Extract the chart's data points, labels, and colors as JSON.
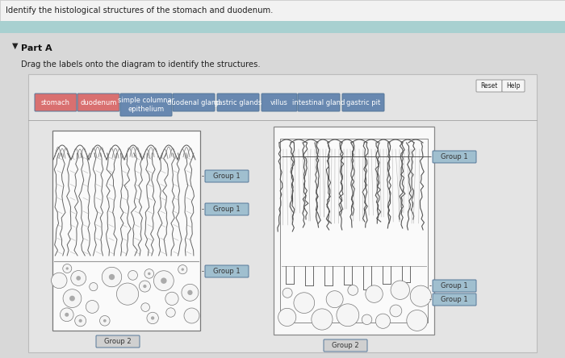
{
  "title_text": "Identify the histological structures of the stomach and duodenum.",
  "teal_bar_color": "#a8d0d0",
  "body_bg": "#d0d0d0",
  "content_bg": "#e8e8e8",
  "inner_bg": "#f0f0f0",
  "diagram_bg": "#ffffff",
  "part_a": "Part A",
  "drag_text": "Drag the labels onto the diagram to identify the structures.",
  "reset_text": "Reset",
  "help_text": "Help",
  "btn_pink": "#d97070",
  "btn_blue": "#6888b0",
  "btn_blue_light": "#7090b8",
  "group1_fill": "#a0bfcf",
  "group2_fill": "#d0d0d0",
  "group1_text": "Group 1",
  "group2_text": "Group 2",
  "label_buttons": [
    {
      "text": "stomach",
      "color": "#d97070"
    },
    {
      "text": "duodenum",
      "color": "#d97070"
    },
    {
      "text": "simple columnar\nepithelium",
      "color": "#6888b0"
    },
    {
      "text": "duodenal gland",
      "color": "#6888b0"
    },
    {
      "text": "gastric glands",
      "color": "#6888b0"
    },
    {
      "text": "villus",
      "color": "#6888b0"
    },
    {
      "text": "intestinal gland",
      "color": "#6888b0"
    },
    {
      "text": "gastric pit",
      "color": "#6888b0"
    }
  ]
}
